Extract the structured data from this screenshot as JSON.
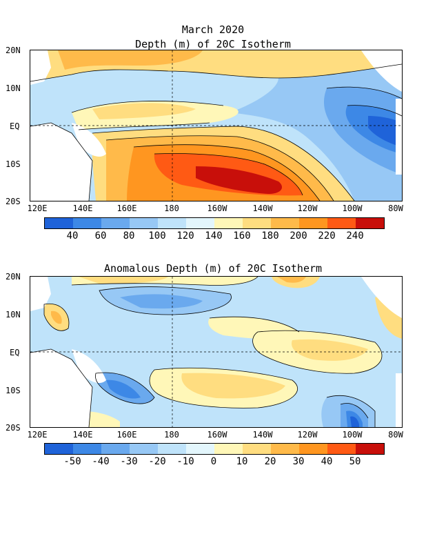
{
  "panel1": {
    "title_line1": "March 2020",
    "title_line2": "Depth (m) of 20C Isotherm",
    "lat_labels": [
      "20N",
      "10N",
      "EQ",
      "10S",
      "20S"
    ],
    "lon_labels": [
      "120E",
      "140E",
      "160E",
      "180",
      "160W",
      "140W",
      "120W",
      "100W",
      "80W"
    ],
    "colorbar": {
      "colors": [
        "#1f63d9",
        "#3d88e6",
        "#6aa9ee",
        "#97c8f5",
        "#bfe3fa",
        "#e3f6fc",
        "#fff7b8",
        "#ffdd80",
        "#ffba4a",
        "#ff9620",
        "#ff5a14",
        "#c80f0a"
      ],
      "ticks": [
        "40",
        "60",
        "80",
        "100",
        "120",
        "140",
        "160",
        "180",
        "200",
        "220",
        "240"
      ]
    }
  },
  "panel2": {
    "title": "Anomalous Depth (m) of 20C Isotherm",
    "lat_labels": [
      "20N",
      "10N",
      "EQ",
      "10S",
      "20S"
    ],
    "lon_labels": [
      "120E",
      "140E",
      "160E",
      "180",
      "160W",
      "140W",
      "120W",
      "100W",
      "80W"
    ],
    "colorbar": {
      "colors": [
        "#1f63d9",
        "#3d88e6",
        "#6aa9ee",
        "#97c8f5",
        "#bfe3fa",
        "#e3f6fc",
        "#fff7b8",
        "#ffdd80",
        "#ffba4a",
        "#ff9620",
        "#ff5a14",
        "#c80f0a"
      ],
      "ticks": [
        "-50",
        "-40",
        "-30",
        "-20",
        "-10",
        "0",
        "10",
        "20",
        "30",
        "40",
        "50"
      ]
    }
  }
}
